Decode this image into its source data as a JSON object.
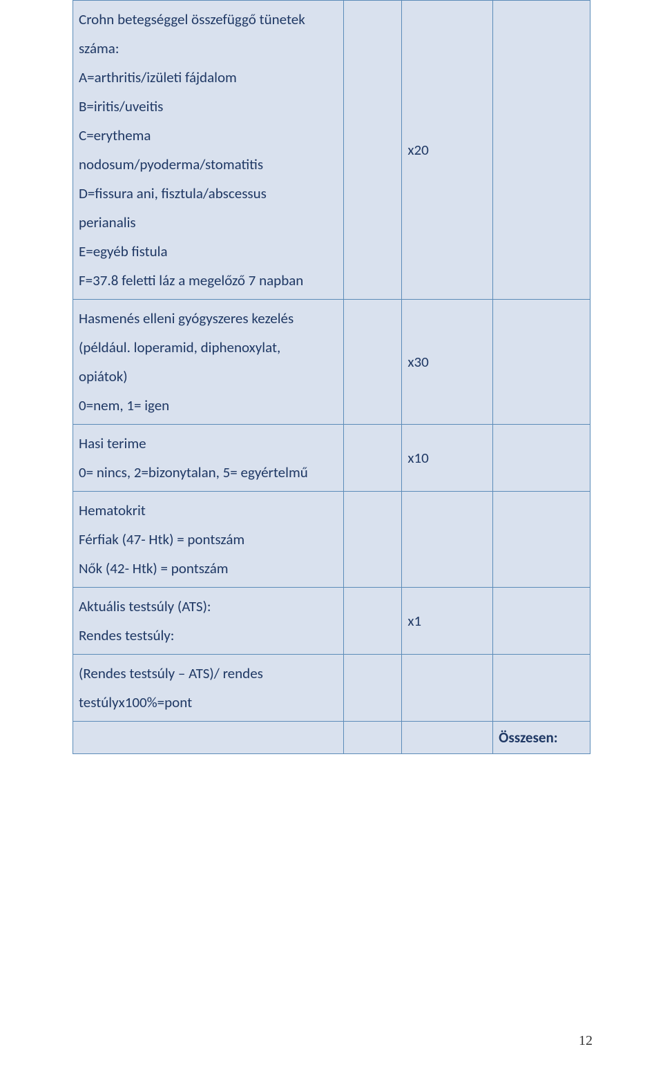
{
  "table": {
    "border_color": "#5b8bb8",
    "cell_background": "#d9e1ee",
    "text_color": "#1f3864",
    "font_size_pt": 16,
    "column_widths_pct": [
      52.3,
      11.3,
      17.6,
      18.8
    ],
    "rows": [
      {
        "c1": "Crohn betegséggel összefüggő tünetek száma:\nA=arthritis/izületi fájdalom\nB=iritis/uveitis\nC=erythema nodosum/pyoderma/stomatitis\nD=fissura ani, fisztula/abscessus perianalis\nE=egyéb fistula\nF=37.8 feletti láz a megelőző 7 napban",
        "c2": "",
        "c3": "x20",
        "c4": ""
      },
      {
        "c1": "Hasmenés elleni gyógyszeres kezelés (például. loperamid, diphenoxylat, opiátok)\n0=nem, 1= igen",
        "c2": "",
        "c3": "x30",
        "c4": ""
      },
      {
        "c1": "Hasi terime\n0= nincs, 2=bizonytalan, 5= egyértelmű",
        "c2": "",
        "c3": "x10",
        "c4": ""
      },
      {
        "c1": "Hematokrit\nFérfiak (47- Htk) = pontszám\nNők (42- Htk) = pontszám",
        "c2": "",
        "c3": "",
        "c4": ""
      },
      {
        "c1": "Aktuális testsúly (ATS):\nRendes testsúly:",
        "c2": "",
        "c3": "x1",
        "c4": ""
      },
      {
        "c1": "(Rendes testsúly – ATS)/ rendes testúlyx100%=pont",
        "c2": "",
        "c3": "",
        "c4": ""
      }
    ],
    "footer": {
      "c1": "",
      "c2": "",
      "c3": "",
      "c4": "Összesen:"
    }
  },
  "row1_lines": {
    "l0": "Crohn betegséggel összefüggő tünetek",
    "l1": "száma:",
    "l2": "A=arthritis/izületi fájdalom",
    "l3": "B=iritis/uveitis",
    "l4": "C=erythema",
    "l5": "nodosum/pyoderma/stomatitis",
    "l6": "D=fissura ani, fisztula/abscessus",
    "l7": "perianalis",
    "l8": "E=egyéb fistula",
    "l9": "F=37.8 feletti láz a megelőző 7 napban"
  },
  "row2_lines": {
    "l0": "Hasmenés elleni gyógyszeres kezelés",
    "l1": "(például. loperamid, diphenoxylat,",
    "l2": "opiátok)",
    "l3": "0=nem, 1= igen"
  },
  "row3_lines": {
    "l0": "Hasi terime",
    "l1": "0= nincs, 2=bizonytalan, 5= egyértelmű"
  },
  "row4_lines": {
    "l0": "Hematokrit",
    "l1": "Férfiak (47- Htk) = pontszám",
    "l2": "Nők (42- Htk) = pontszám"
  },
  "row5_lines": {
    "l0": "Aktuális testsúly (ATS):",
    "l1": "Rendes testsúly:"
  },
  "row6_lines": {
    "l0": "(Rendes testsúly – ATS)/ rendes",
    "l1": "testúlyx100%=pont"
  },
  "page_number": "12"
}
